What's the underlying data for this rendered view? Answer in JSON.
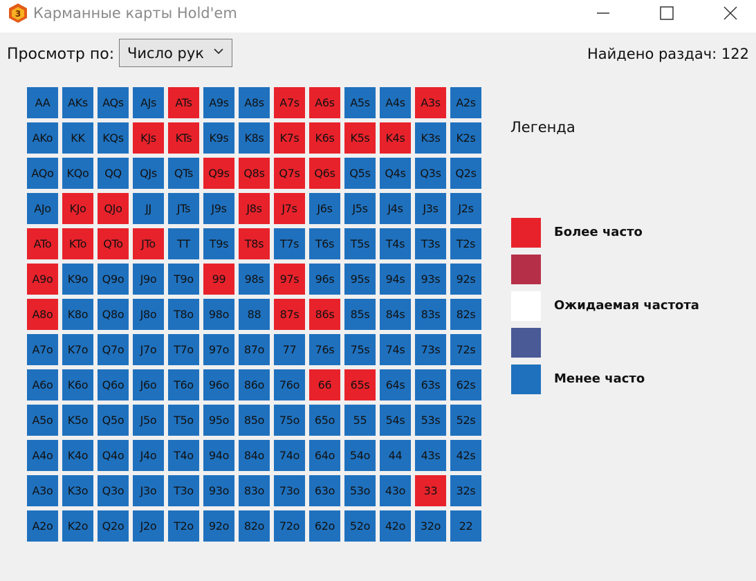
{
  "window": {
    "icon_letter": "3",
    "title": "Карманные карты Hold'em"
  },
  "toolbar": {
    "view_label": "Просмотр по:",
    "view_select_value": "Число рук",
    "found_label": "Найдено раздач:",
    "found_count": "122"
  },
  "colors": {
    "more": "#e8222b",
    "above": "#b62f48",
    "expected": "#ffffff",
    "below": "#4a5a96",
    "less": "#1f71be"
  },
  "matrix": [
    [
      [
        "AA",
        "less"
      ],
      [
        "AKs",
        "less"
      ],
      [
        "AQs",
        "less"
      ],
      [
        "AJs",
        "less"
      ],
      [
        "ATs",
        "more"
      ],
      [
        "A9s",
        "less"
      ],
      [
        "A8s",
        "less"
      ],
      [
        "A7s",
        "more"
      ],
      [
        "A6s",
        "more"
      ],
      [
        "A5s",
        "less"
      ],
      [
        "A4s",
        "less"
      ],
      [
        "A3s",
        "more"
      ],
      [
        "A2s",
        "less"
      ]
    ],
    [
      [
        "AKo",
        "less"
      ],
      [
        "KK",
        "less"
      ],
      [
        "KQs",
        "less"
      ],
      [
        "KJs",
        "more"
      ],
      [
        "KTs",
        "more"
      ],
      [
        "K9s",
        "less"
      ],
      [
        "K8s",
        "less"
      ],
      [
        "K7s",
        "more"
      ],
      [
        "K6s",
        "more"
      ],
      [
        "K5s",
        "more"
      ],
      [
        "K4s",
        "more"
      ],
      [
        "K3s",
        "less"
      ],
      [
        "K2s",
        "less"
      ]
    ],
    [
      [
        "AQo",
        "less"
      ],
      [
        "KQo",
        "less"
      ],
      [
        "QQ",
        "less"
      ],
      [
        "QJs",
        "less"
      ],
      [
        "QTs",
        "less"
      ],
      [
        "Q9s",
        "more"
      ],
      [
        "Q8s",
        "more"
      ],
      [
        "Q7s",
        "more"
      ],
      [
        "Q6s",
        "more"
      ],
      [
        "Q5s",
        "less"
      ],
      [
        "Q4s",
        "less"
      ],
      [
        "Q3s",
        "less"
      ],
      [
        "Q2s",
        "less"
      ]
    ],
    [
      [
        "AJo",
        "less"
      ],
      [
        "KJo",
        "more"
      ],
      [
        "QJo",
        "more"
      ],
      [
        "JJ",
        "less"
      ],
      [
        "JTs",
        "less"
      ],
      [
        "J9s",
        "less"
      ],
      [
        "J8s",
        "more"
      ],
      [
        "J7s",
        "more"
      ],
      [
        "J6s",
        "less"
      ],
      [
        "J5s",
        "less"
      ],
      [
        "J4s",
        "less"
      ],
      [
        "J3s",
        "less"
      ],
      [
        "J2s",
        "less"
      ]
    ],
    [
      [
        "ATo",
        "more"
      ],
      [
        "KTo",
        "more"
      ],
      [
        "QTo",
        "more"
      ],
      [
        "JTo",
        "more"
      ],
      [
        "TT",
        "less"
      ],
      [
        "T9s",
        "less"
      ],
      [
        "T8s",
        "more"
      ],
      [
        "T7s",
        "less"
      ],
      [
        "T6s",
        "less"
      ],
      [
        "T5s",
        "less"
      ],
      [
        "T4s",
        "less"
      ],
      [
        "T3s",
        "less"
      ],
      [
        "T2s",
        "less"
      ]
    ],
    [
      [
        "A9o",
        "more"
      ],
      [
        "K9o",
        "less"
      ],
      [
        "Q9o",
        "less"
      ],
      [
        "J9o",
        "less"
      ],
      [
        "T9o",
        "less"
      ],
      [
        "99",
        "more"
      ],
      [
        "98s",
        "less"
      ],
      [
        "97s",
        "more"
      ],
      [
        "96s",
        "less"
      ],
      [
        "95s",
        "less"
      ],
      [
        "94s",
        "less"
      ],
      [
        "93s",
        "less"
      ],
      [
        "92s",
        "less"
      ]
    ],
    [
      [
        "A8o",
        "more"
      ],
      [
        "K8o",
        "less"
      ],
      [
        "Q8o",
        "less"
      ],
      [
        "J8o",
        "less"
      ],
      [
        "T8o",
        "less"
      ],
      [
        "98o",
        "less"
      ],
      [
        "88",
        "less"
      ],
      [
        "87s",
        "more"
      ],
      [
        "86s",
        "more"
      ],
      [
        "85s",
        "less"
      ],
      [
        "84s",
        "less"
      ],
      [
        "83s",
        "less"
      ],
      [
        "82s",
        "less"
      ]
    ],
    [
      [
        "A7o",
        "less"
      ],
      [
        "K7o",
        "less"
      ],
      [
        "Q7o",
        "less"
      ],
      [
        "J7o",
        "less"
      ],
      [
        "T7o",
        "less"
      ],
      [
        "97o",
        "less"
      ],
      [
        "87o",
        "less"
      ],
      [
        "77",
        "less"
      ],
      [
        "76s",
        "less"
      ],
      [
        "75s",
        "less"
      ],
      [
        "74s",
        "less"
      ],
      [
        "73s",
        "less"
      ],
      [
        "72s",
        "less"
      ]
    ],
    [
      [
        "A6o",
        "less"
      ],
      [
        "K6o",
        "less"
      ],
      [
        "Q6o",
        "less"
      ],
      [
        "J6o",
        "less"
      ],
      [
        "T6o",
        "less"
      ],
      [
        "96o",
        "less"
      ],
      [
        "86o",
        "less"
      ],
      [
        "76o",
        "less"
      ],
      [
        "66",
        "more"
      ],
      [
        "65s",
        "more"
      ],
      [
        "64s",
        "less"
      ],
      [
        "63s",
        "less"
      ],
      [
        "62s",
        "less"
      ]
    ],
    [
      [
        "A5o",
        "less"
      ],
      [
        "K5o",
        "less"
      ],
      [
        "Q5o",
        "less"
      ],
      [
        "J5o",
        "less"
      ],
      [
        "T5o",
        "less"
      ],
      [
        "95o",
        "less"
      ],
      [
        "85o",
        "less"
      ],
      [
        "75o",
        "less"
      ],
      [
        "65o",
        "less"
      ],
      [
        "55",
        "less"
      ],
      [
        "54s",
        "less"
      ],
      [
        "53s",
        "less"
      ],
      [
        "52s",
        "less"
      ]
    ],
    [
      [
        "A4o",
        "less"
      ],
      [
        "K4o",
        "less"
      ],
      [
        "Q4o",
        "less"
      ],
      [
        "J4o",
        "less"
      ],
      [
        "T4o",
        "less"
      ],
      [
        "94o",
        "less"
      ],
      [
        "84o",
        "less"
      ],
      [
        "74o",
        "less"
      ],
      [
        "64o",
        "less"
      ],
      [
        "54o",
        "less"
      ],
      [
        "44",
        "less"
      ],
      [
        "43s",
        "less"
      ],
      [
        "42s",
        "less"
      ]
    ],
    [
      [
        "A3o",
        "less"
      ],
      [
        "K3o",
        "less"
      ],
      [
        "Q3o",
        "less"
      ],
      [
        "J3o",
        "less"
      ],
      [
        "T3o",
        "less"
      ],
      [
        "93o",
        "less"
      ],
      [
        "83o",
        "less"
      ],
      [
        "73o",
        "less"
      ],
      [
        "63o",
        "less"
      ],
      [
        "53o",
        "less"
      ],
      [
        "43o",
        "less"
      ],
      [
        "33",
        "more"
      ],
      [
        "32s",
        "less"
      ]
    ],
    [
      [
        "A2o",
        "less"
      ],
      [
        "K2o",
        "less"
      ],
      [
        "Q2o",
        "less"
      ],
      [
        "J2o",
        "less"
      ],
      [
        "T2o",
        "less"
      ],
      [
        "92o",
        "less"
      ],
      [
        "82o",
        "less"
      ],
      [
        "72o",
        "less"
      ],
      [
        "62o",
        "less"
      ],
      [
        "52o",
        "less"
      ],
      [
        "42o",
        "less"
      ],
      [
        "32o",
        "less"
      ],
      [
        "22",
        "less"
      ]
    ]
  ],
  "legend": {
    "title": "Легенда",
    "items": [
      {
        "key": "more",
        "label": "Более часто"
      },
      {
        "key": "above",
        "label": ""
      },
      {
        "key": "expected",
        "label": "Ожидаемая частота"
      },
      {
        "key": "below",
        "label": ""
      },
      {
        "key": "less",
        "label": "Менее часто"
      }
    ]
  }
}
